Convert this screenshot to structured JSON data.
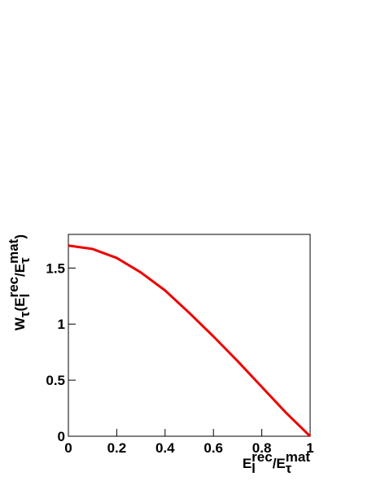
{
  "chart_data": {
    "type": "line",
    "x_label": [
      {
        "base": "E"
      },
      {
        "sub": "l"
      },
      {
        "sup": "rec"
      },
      {
        "base": "/E"
      },
      {
        "sub": "τ"
      },
      {
        "sup": "mat"
      }
    ],
    "y_label": [
      {
        "base": "W"
      },
      {
        "sub": "τ"
      },
      {
        "base": "(E"
      },
      {
        "sub": "l"
      },
      {
        "sup": "rec"
      },
      {
        "base": "/E"
      },
      {
        "sub": "τ"
      },
      {
        "sup": "mat"
      },
      {
        "base": ")"
      }
    ],
    "x": [
      0,
      0.1,
      0.2,
      0.3,
      0.4,
      0.5,
      0.6,
      0.7,
      0.8,
      0.9,
      1.0
    ],
    "series": [
      {
        "color": "#ee0000",
        "values": [
          1.7,
          1.67,
          1.59,
          1.46,
          1.3,
          1.1,
          0.89,
          0.67,
          0.44,
          0.21,
          0
        ]
      }
    ],
    "xlim": [
      0,
      1
    ],
    "xticks": [
      0,
      0.2,
      0.4,
      0.6,
      0.8,
      1
    ],
    "ylim": [
      0,
      1.8
    ],
    "yticks": [
      0,
      0.5,
      1,
      1.5
    ]
  }
}
